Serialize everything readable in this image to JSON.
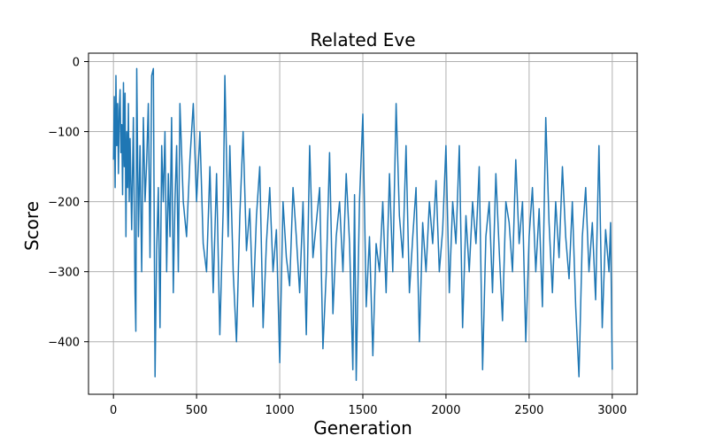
{
  "chart_data": {
    "type": "line",
    "title": "Related Eve",
    "xlabel": "Generation",
    "ylabel": "Score",
    "xlim": [
      -150,
      3150
    ],
    "ylim": [
      -475,
      12
    ],
    "xticks": [
      0,
      500,
      1000,
      1500,
      2000,
      2500,
      3000
    ],
    "yticks": [
      0,
      -100,
      -200,
      -300,
      -400
    ],
    "xtick_labels": [
      "0",
      "500",
      "1000",
      "1500",
      "2000",
      "2500",
      "3000"
    ],
    "ytick_labels": [
      "0",
      "−100",
      "−200",
      "−300",
      "−400"
    ],
    "grid": true,
    "series": [
      {
        "color": "#1f77b4",
        "x_range": [
          0,
          3000
        ],
        "points_count": 3001,
        "sampled_points": [
          [
            0,
            -140
          ],
          [
            5,
            -50
          ],
          [
            10,
            -180
          ],
          [
            15,
            -20
          ],
          [
            20,
            -120
          ],
          [
            25,
            -60
          ],
          [
            30,
            -160
          ],
          [
            35,
            -70
          ],
          [
            40,
            -40
          ],
          [
            45,
            -130
          ],
          [
            50,
            -90
          ],
          [
            55,
            -190
          ],
          [
            60,
            -30
          ],
          [
            65,
            -150
          ],
          [
            70,
            -45
          ],
          [
            75,
            -250
          ],
          [
            80,
            -100
          ],
          [
            85,
            -180
          ],
          [
            90,
            -60
          ],
          [
            95,
            -200
          ],
          [
            100,
            -110
          ],
          [
            110,
            -240
          ],
          [
            120,
            -80
          ],
          [
            130,
            -330
          ],
          [
            135,
            -385
          ],
          [
            140,
            -10
          ],
          [
            150,
            -250
          ],
          [
            160,
            -120
          ],
          [
            170,
            -300
          ],
          [
            180,
            -80
          ],
          [
            190,
            -200
          ],
          [
            200,
            -140
          ],
          [
            210,
            -60
          ],
          [
            220,
            -280
          ],
          [
            230,
            -20
          ],
          [
            240,
            -10
          ],
          [
            250,
            -450
          ],
          [
            260,
            -270
          ],
          [
            270,
            -180
          ],
          [
            280,
            -380
          ],
          [
            290,
            -120
          ],
          [
            300,
            -200
          ],
          [
            310,
            -100
          ],
          [
            320,
            -300
          ],
          [
            330,
            -160
          ],
          [
            340,
            -250
          ],
          [
            350,
            -80
          ],
          [
            360,
            -330
          ],
          [
            370,
            -200
          ],
          [
            380,
            -120
          ],
          [
            390,
            -300
          ],
          [
            400,
            -60
          ],
          [
            420,
            -200
          ],
          [
            440,
            -250
          ],
          [
            460,
            -140
          ],
          [
            480,
            -60
          ],
          [
            500,
            -200
          ],
          [
            520,
            -100
          ],
          [
            540,
            -260
          ],
          [
            560,
            -300
          ],
          [
            580,
            -150
          ],
          [
            600,
            -330
          ],
          [
            620,
            -160
          ],
          [
            640,
            -390
          ],
          [
            660,
            -210
          ],
          [
            670,
            -20
          ],
          [
            690,
            -250
          ],
          [
            700,
            -120
          ],
          [
            720,
            -300
          ],
          [
            740,
            -400
          ],
          [
            760,
            -220
          ],
          [
            780,
            -100
          ],
          [
            800,
            -270
          ],
          [
            820,
            -210
          ],
          [
            840,
            -350
          ],
          [
            860,
            -220
          ],
          [
            880,
            -150
          ],
          [
            900,
            -380
          ],
          [
            920,
            -260
          ],
          [
            940,
            -180
          ],
          [
            960,
            -300
          ],
          [
            980,
            -240
          ],
          [
            1000,
            -430
          ],
          [
            1020,
            -200
          ],
          [
            1040,
            -280
          ],
          [
            1060,
            -320
          ],
          [
            1080,
            -180
          ],
          [
            1100,
            -250
          ],
          [
            1120,
            -330
          ],
          [
            1140,
            -200
          ],
          [
            1160,
            -390
          ],
          [
            1180,
            -120
          ],
          [
            1200,
            -280
          ],
          [
            1220,
            -230
          ],
          [
            1240,
            -180
          ],
          [
            1260,
            -410
          ],
          [
            1280,
            -300
          ],
          [
            1300,
            -130
          ],
          [
            1320,
            -360
          ],
          [
            1340,
            -250
          ],
          [
            1360,
            -200
          ],
          [
            1380,
            -300
          ],
          [
            1400,
            -160
          ],
          [
            1420,
            -260
          ],
          [
            1440,
            -440
          ],
          [
            1450,
            -190
          ],
          [
            1460,
            -455
          ],
          [
            1480,
            -200
          ],
          [
            1500,
            -75
          ],
          [
            1520,
            -350
          ],
          [
            1540,
            -250
          ],
          [
            1560,
            -420
          ],
          [
            1580,
            -260
          ],
          [
            1600,
            -300
          ],
          [
            1620,
            -200
          ],
          [
            1640,
            -330
          ],
          [
            1660,
            -160
          ],
          [
            1680,
            -300
          ],
          [
            1700,
            -60
          ],
          [
            1720,
            -220
          ],
          [
            1740,
            -280
          ],
          [
            1760,
            -120
          ],
          [
            1780,
            -330
          ],
          [
            1800,
            -250
          ],
          [
            1820,
            -180
          ],
          [
            1840,
            -400
          ],
          [
            1860,
            -230
          ],
          [
            1880,
            -300
          ],
          [
            1900,
            -200
          ],
          [
            1920,
            -260
          ],
          [
            1940,
            -170
          ],
          [
            1960,
            -300
          ],
          [
            1980,
            -240
          ],
          [
            2000,
            -120
          ],
          [
            2020,
            -330
          ],
          [
            2040,
            -200
          ],
          [
            2060,
            -260
          ],
          [
            2080,
            -120
          ],
          [
            2100,
            -380
          ],
          [
            2120,
            -220
          ],
          [
            2140,
            -300
          ],
          [
            2160,
            -200
          ],
          [
            2180,
            -260
          ],
          [
            2200,
            -150
          ],
          [
            2220,
            -440
          ],
          [
            2240,
            -250
          ],
          [
            2260,
            -200
          ],
          [
            2280,
            -330
          ],
          [
            2300,
            -160
          ],
          [
            2320,
            -270
          ],
          [
            2340,
            -370
          ],
          [
            2360,
            -200
          ],
          [
            2380,
            -230
          ],
          [
            2400,
            -300
          ],
          [
            2420,
            -140
          ],
          [
            2440,
            -260
          ],
          [
            2460,
            -200
          ],
          [
            2480,
            -400
          ],
          [
            2500,
            -250
          ],
          [
            2520,
            -180
          ],
          [
            2540,
            -300
          ],
          [
            2560,
            -210
          ],
          [
            2580,
            -350
          ],
          [
            2600,
            -80
          ],
          [
            2620,
            -230
          ],
          [
            2640,
            -330
          ],
          [
            2660,
            -200
          ],
          [
            2680,
            -280
          ],
          [
            2700,
            -150
          ],
          [
            2720,
            -250
          ],
          [
            2740,
            -310
          ],
          [
            2760,
            -200
          ],
          [
            2780,
            -350
          ],
          [
            2800,
            -450
          ],
          [
            2820,
            -250
          ],
          [
            2840,
            -180
          ],
          [
            2860,
            -300
          ],
          [
            2880,
            -230
          ],
          [
            2900,
            -340
          ],
          [
            2920,
            -120
          ],
          [
            2940,
            -380
          ],
          [
            2960,
            -240
          ],
          [
            2980,
            -300
          ],
          [
            2990,
            -230
          ],
          [
            3000,
            -440
          ]
        ]
      }
    ]
  }
}
